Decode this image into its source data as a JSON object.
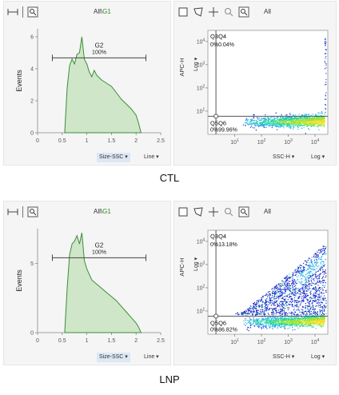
{
  "panels": [
    {
      "caption": "CTL",
      "histogram": {
        "gate_path_prefix": "All\\",
        "gate_path_gate": "G1",
        "ylabel": "Events",
        "xaxis_select": "Size-SSC",
        "mode_select": "Line",
        "gate_label": "G2",
        "gate_percent": "100%"
      },
      "dotplot": {
        "gate_path": "All",
        "ylabel": "APC-H",
        "yscale_select": "Log",
        "xaxis_select": "SSC-H",
        "xscale_select": "Log",
        "quadrants": [
          {
            "name": "Q3",
            "percent": "0%"
          },
          {
            "name": "Q4",
            "percent": "0.04%"
          },
          {
            "name": "Q5",
            "percent": "0%"
          },
          {
            "name": "Q6",
            "percent": "99.96%"
          }
        ]
      }
    },
    {
      "caption": "LNP",
      "histogram": {
        "gate_path_prefix": "All\\",
        "gate_path_gate": "G1",
        "ylabel": "Events",
        "xaxis_select": "Size-SSC",
        "mode_select": "Line",
        "gate_label": "G2",
        "gate_percent": "100%"
      },
      "dotplot": {
        "gate_path": "All",
        "ylabel": "APC-H",
        "yscale_select": "Log",
        "xaxis_select": "SSC-H",
        "xscale_select": "Log",
        "quadrants": [
          {
            "name": "Q3",
            "percent": "0%"
          },
          {
            "name": "Q4",
            "percent": "13.18%"
          },
          {
            "name": "Q5",
            "percent": "0%"
          },
          {
            "name": "Q6",
            "percent": "86.82%"
          }
        ]
      }
    }
  ],
  "chart_data": [
    {
      "type": "area",
      "panel": "CTL histogram",
      "xlabel": "Size-SSC",
      "ylabel": "Events",
      "xlim": [
        0,
        2.5
      ],
      "ylim": [
        0,
        6.5
      ],
      "xticks": [
        "0",
        "0.5",
        "1",
        "1.5",
        "2",
        "2.5"
      ],
      "yticks": [
        "0",
        "2",
        "4",
        "6"
      ],
      "x": [
        0.55,
        0.6,
        0.65,
        0.7,
        0.75,
        0.8,
        0.85,
        0.9,
        0.95,
        1.0,
        1.05,
        1.1,
        1.15,
        1.2,
        1.3,
        1.4,
        1.5,
        1.6,
        1.7,
        1.8,
        1.9,
        2.0,
        2.05,
        2.1
      ],
      "y": [
        0,
        2.8,
        4.2,
        4.6,
        4.3,
        4.9,
        5.0,
        6.0,
        4.6,
        4.3,
        3.8,
        3.5,
        3.9,
        3.6,
        3.3,
        3.1,
        2.9,
        2.5,
        2.1,
        1.8,
        1.5,
        1.1,
        0.6,
        0
      ],
      "gate": {
        "name": "G2",
        "percent": "100%",
        "range": [
          0.3,
          2.2
        ]
      },
      "color": "#3a8e3a",
      "fill": "#cfe6c8"
    },
    {
      "type": "scatter",
      "panel": "CTL dot plot",
      "xlabel": "SSC-H",
      "ylabel": "APC-H",
      "xscale": "log",
      "yscale": "log",
      "xlim": [
        1,
        30000
      ],
      "ylim": [
        1,
        30000
      ],
      "xticks": [
        "10^1",
        "10^2",
        "10^3",
        "10^4"
      ],
      "yticks": [
        "10^1",
        "10^2",
        "10^3",
        "10^4"
      ],
      "quadrant_gate": [
        2,
        6
      ],
      "quadrants": {
        "Q3": "0%",
        "Q4": "0.04%",
        "Q5": "0%",
        "Q6": "99.96%"
      }
    },
    {
      "type": "area",
      "panel": "LNP histogram",
      "xlabel": "Size-SSC",
      "ylabel": "Events",
      "xlim": [
        0,
        2.5
      ],
      "ylim": [
        0,
        7.5
      ],
      "xticks": [
        "0",
        "0.5",
        "1",
        "1.5",
        "2",
        "2.5"
      ],
      "yticks": [
        "0",
        "5"
      ],
      "x": [
        0.55,
        0.6,
        0.65,
        0.7,
        0.75,
        0.8,
        0.85,
        0.9,
        0.95,
        1.0,
        1.05,
        1.1,
        1.2,
        1.3,
        1.4,
        1.5,
        1.6,
        1.7,
        1.8,
        1.9,
        2.0,
        2.05,
        2.1
      ],
      "y": [
        0,
        3.2,
        5.6,
        6.4,
        6.6,
        7.0,
        6.4,
        7.2,
        5.2,
        4.6,
        4.2,
        3.8,
        3.5,
        3.2,
        2.9,
        2.6,
        2.3,
        1.9,
        1.5,
        1.1,
        0.7,
        0.4,
        0
      ],
      "gate": {
        "name": "G2",
        "percent": "100%",
        "range": [
          0.3,
          2.2
        ]
      },
      "color": "#3a8e3a",
      "fill": "#cfe6c8"
    },
    {
      "type": "scatter",
      "panel": "LNP dot plot",
      "xlabel": "SSC-H",
      "ylabel": "APC-H",
      "xscale": "log",
      "yscale": "log",
      "xlim": [
        1,
        30000
      ],
      "ylim": [
        1,
        30000
      ],
      "xticks": [
        "10^1",
        "10^2",
        "10^3",
        "10^4"
      ],
      "yticks": [
        "10^1",
        "10^2",
        "10^3",
        "10^4"
      ],
      "quadrant_gate": [
        2,
        6
      ],
      "quadrants": {
        "Q3": "0%",
        "Q4": "13.18%",
        "Q5": "0%",
        "Q6": "86.82%"
      }
    }
  ]
}
